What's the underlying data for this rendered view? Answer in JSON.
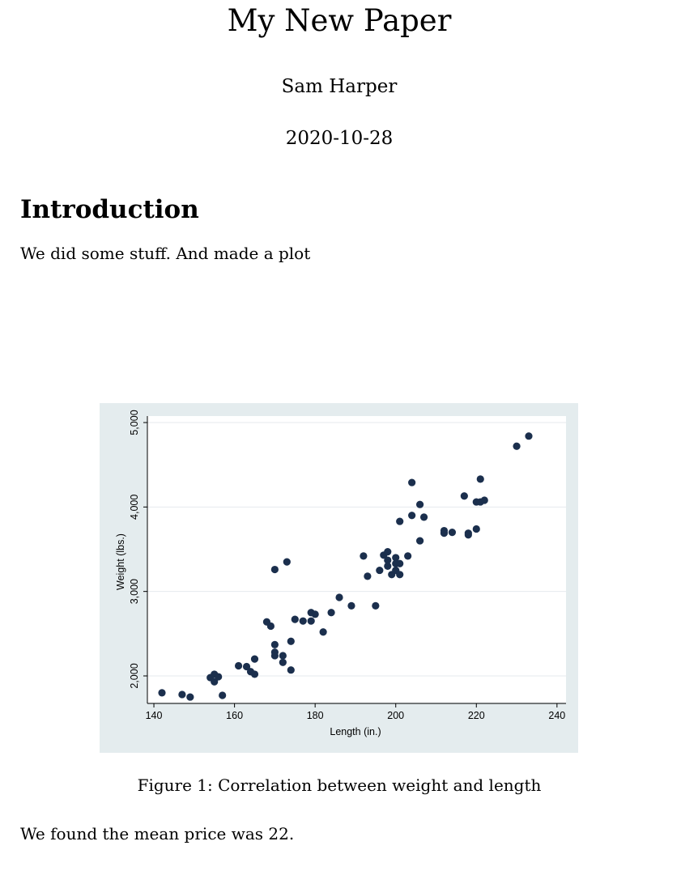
{
  "paper": {
    "title": "My New Paper",
    "author": "Sam Harper",
    "date": "2020-10-28",
    "section_title": "Introduction",
    "intro_text": "We did some stuff. And made a plot",
    "caption": "Figure 1: Correlation between weight and length",
    "result_text": "We found the mean price was 22."
  },
  "chart_data": {
    "type": "scatter",
    "xlabel": "Length (in.)",
    "ylabel": "Weight (lbs.)",
    "xlim": [
      140,
      240
    ],
    "ylim": [
      1700,
      5000
    ],
    "x_ticks": [
      140,
      160,
      180,
      200,
      220,
      240
    ],
    "y_ticks": [
      2000,
      3000,
      4000,
      5000
    ],
    "y_tick_labels": [
      "2,000",
      "3,000",
      "4,000",
      "5,000"
    ],
    "grid": true,
    "colors": {
      "background": "#e4ecee",
      "plot_area": "#ffffff",
      "marker": "#1b2f4d",
      "grid": "#e6e9ee"
    },
    "points": [
      [
        142,
        1800
      ],
      [
        147,
        1780
      ],
      [
        149,
        1750
      ],
      [
        154,
        1980
      ],
      [
        155,
        2020
      ],
      [
        155,
        1930
      ],
      [
        156,
        1990
      ],
      [
        157,
        1770
      ],
      [
        161,
        2120
      ],
      [
        163,
        2110
      ],
      [
        164,
        2050
      ],
      [
        165,
        2020
      ],
      [
        165,
        2200
      ],
      [
        168,
        2640
      ],
      [
        169,
        2590
      ],
      [
        170,
        2370
      ],
      [
        170,
        2280
      ],
      [
        170,
        2240
      ],
      [
        170,
        3260
      ],
      [
        172,
        2160
      ],
      [
        172,
        2240
      ],
      [
        173,
        3350
      ],
      [
        174,
        2070
      ],
      [
        174,
        2410
      ],
      [
        175,
        2670
      ],
      [
        177,
        2650
      ],
      [
        179,
        2750
      ],
      [
        179,
        2650
      ],
      [
        180,
        2730
      ],
      [
        182,
        2520
      ],
      [
        184,
        2750
      ],
      [
        186,
        2930
      ],
      [
        189,
        2830
      ],
      [
        192,
        3420
      ],
      [
        193,
        3180
      ],
      [
        195,
        2830
      ],
      [
        196,
        3250
      ],
      [
        197,
        3430
      ],
      [
        198,
        3470
      ],
      [
        198,
        3370
      ],
      [
        198,
        3300
      ],
      [
        199,
        3200
      ],
      [
        200,
        3400
      ],
      [
        200,
        3330
      ],
      [
        200,
        3250
      ],
      [
        201,
        3200
      ],
      [
        201,
        3330
      ],
      [
        201,
        3830
      ],
      [
        203,
        3420
      ],
      [
        204,
        3900
      ],
      [
        204,
        4290
      ],
      [
        206,
        4030
      ],
      [
        206,
        3600
      ],
      [
        207,
        3880
      ],
      [
        212,
        3720
      ],
      [
        212,
        3690
      ],
      [
        214,
        3700
      ],
      [
        217,
        4130
      ],
      [
        218,
        3690
      ],
      [
        218,
        3670
      ],
      [
        220,
        4060
      ],
      [
        220,
        3740
      ],
      [
        221,
        4330
      ],
      [
        221,
        4060
      ],
      [
        222,
        4080
      ],
      [
        230,
        4720
      ],
      [
        233,
        4840
      ]
    ]
  }
}
